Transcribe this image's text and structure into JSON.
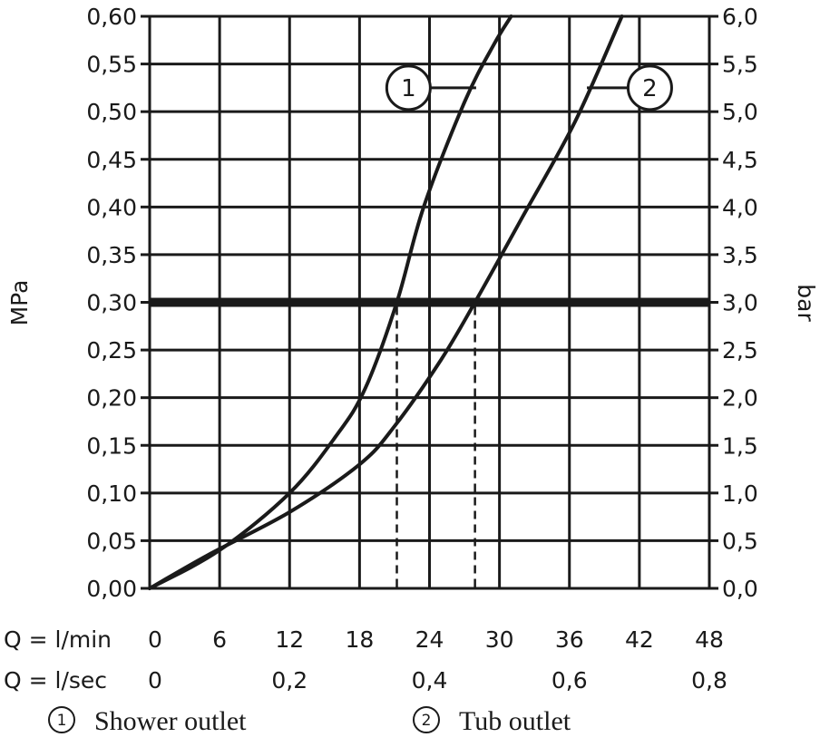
{
  "chart_data": {
    "type": "line",
    "colors": {
      "ink": "#1a1a1a",
      "background": "#ffffff"
    },
    "y_left": {
      "label": "MPa",
      "range": [
        0,
        0.6
      ],
      "ticks": [
        "0,00",
        "0,05",
        "0,10",
        "0,15",
        "0,20",
        "0,25",
        "0,30",
        "0,35",
        "0,40",
        "0,45",
        "0,50",
        "0,55",
        "0,60"
      ]
    },
    "y_right": {
      "label": "bar",
      "range": [
        0,
        6
      ],
      "ticks": [
        "0,0",
        "0,5",
        "1,0",
        "1,5",
        "2,0",
        "2,5",
        "3,0",
        "3,5",
        "4,0",
        "4,5",
        "5,0",
        "5,5",
        "6,0"
      ]
    },
    "x_primary": {
      "label": "Q = l/min",
      "range": [
        0,
        48
      ],
      "ticks": [
        {
          "value": 0,
          "label": "0"
        },
        {
          "value": 6,
          "label": "6"
        },
        {
          "value": 12,
          "label": "12"
        },
        {
          "value": 18,
          "label": "18"
        },
        {
          "value": 24,
          "label": "24"
        },
        {
          "value": 30,
          "label": "30"
        },
        {
          "value": 36,
          "label": "36"
        },
        {
          "value": 42,
          "label": "42"
        },
        {
          "value": 48,
          "label": "48"
        }
      ]
    },
    "x_secondary": {
      "label": "Q = l/sec",
      "ticks": [
        {
          "value": 0,
          "label": "0"
        },
        {
          "value": 12,
          "label": "0,2"
        },
        {
          "value": 24,
          "label": "0,4"
        },
        {
          "value": 36,
          "label": "0,6"
        },
        {
          "value": 48,
          "label": "0,8"
        }
      ]
    },
    "reference_line": {
      "y": 0.3
    },
    "series": [
      {
        "id": "1",
        "name": "Shower outlet",
        "badge": "1",
        "badge_at": {
          "x": 22.2,
          "y": 0.525
        },
        "connector_to": {
          "x": 28.0,
          "y": 0.525
        },
        "drop_at_x": 21.2,
        "x": [
          0,
          6,
          12,
          16,
          18.5,
          21.2,
          23.5,
          27,
          29.5,
          31
        ],
        "y": [
          0,
          0.04,
          0.1,
          0.16,
          0.21,
          0.3,
          0.4,
          0.51,
          0.57,
          0.6
        ]
      },
      {
        "id": "2",
        "name": "Tub outlet",
        "badge": "2",
        "badge_at": {
          "x": 42.9,
          "y": 0.525
        },
        "connector_to": {
          "x": 37.5,
          "y": 0.525
        },
        "drop_at_x": 27.9,
        "x": [
          0,
          5,
          12,
          18,
          21,
          25,
          27.9,
          32,
          36.5,
          40.5
        ],
        "y": [
          0,
          0.035,
          0.08,
          0.13,
          0.17,
          0.24,
          0.3,
          0.39,
          0.49,
          0.6
        ]
      }
    ]
  }
}
